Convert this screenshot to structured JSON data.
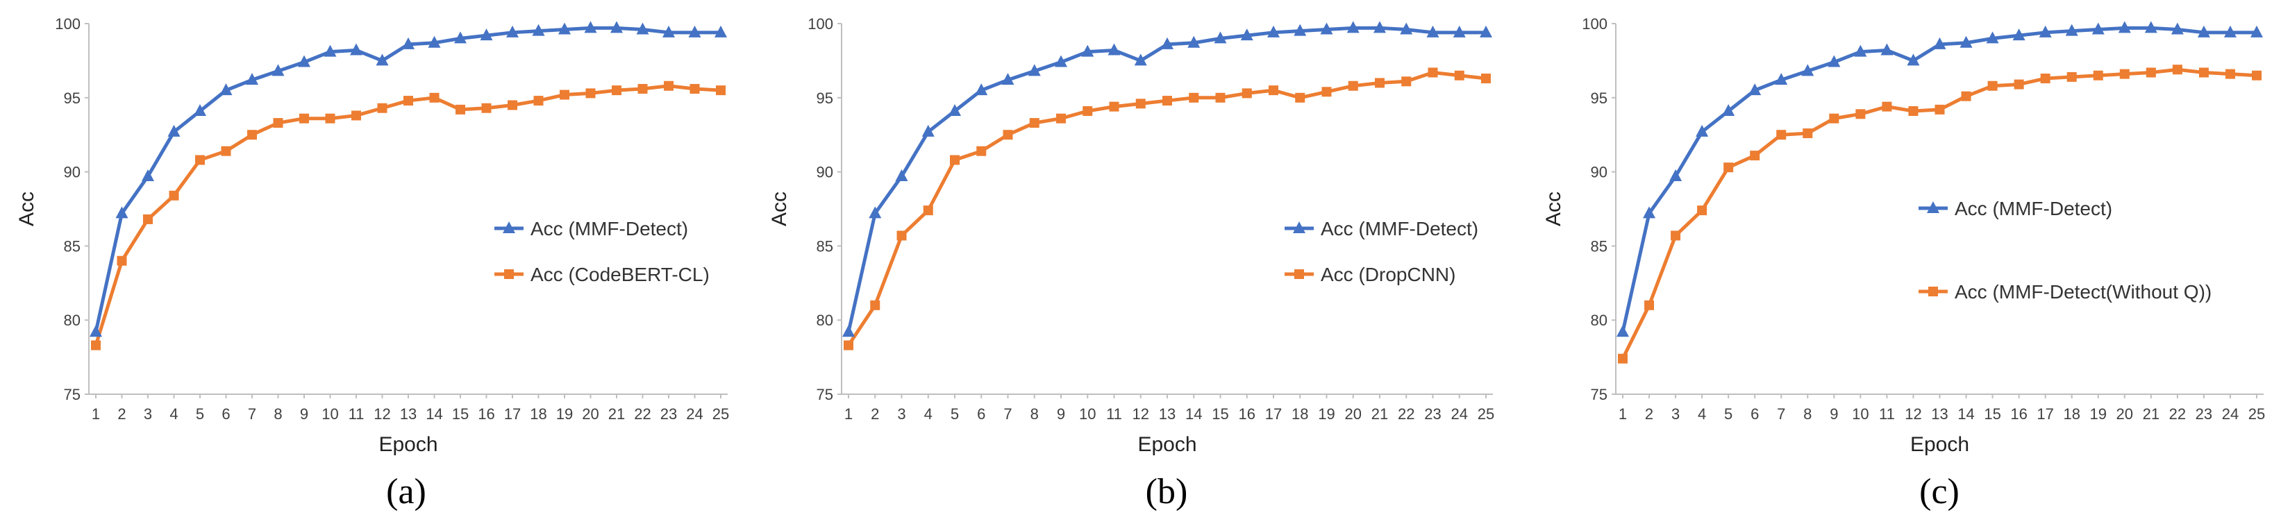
{
  "colors": {
    "mmf": "#4472C4",
    "other": "#ED7D31",
    "axis": "#BFBFBF"
  },
  "chart_data": [
    {
      "type": "line",
      "caption": "(a)",
      "xlabel": "Epoch",
      "ylabel": "Acc",
      "ylim": [
        75,
        100
      ],
      "yticks": [
        "75",
        "80",
        "85",
        "90",
        "95",
        "100"
      ],
      "categories": [
        "1",
        "2",
        "3",
        "4",
        "5",
        "6",
        "7",
        "8",
        "9",
        "10",
        "11",
        "12",
        "13",
        "14",
        "15",
        "16",
        "17",
        "18",
        "19",
        "20",
        "21",
        "22",
        "23",
        "24",
        "25"
      ],
      "legend_position": "center-right",
      "series": [
        {
          "name": "Acc (MMF-Detect)",
          "marker": "triangle",
          "color": "#4472C4",
          "values": [
            79.2,
            87.2,
            89.7,
            92.7,
            94.1,
            95.5,
            96.2,
            96.8,
            97.4,
            98.1,
            98.2,
            97.5,
            98.6,
            98.7,
            99.0,
            99.2,
            99.4,
            99.5,
            99.6,
            99.7,
            99.7,
            99.6,
            99.4,
            99.4,
            99.4
          ]
        },
        {
          "name": "Acc (CodeBERT-CL)",
          "marker": "square",
          "color": "#ED7D31",
          "values": [
            78.3,
            84.0,
            86.8,
            88.4,
            90.8,
            91.4,
            92.5,
            93.3,
            93.6,
            93.6,
            93.8,
            94.3,
            94.8,
            95.0,
            94.2,
            94.3,
            94.5,
            94.8,
            95.2,
            95.3,
            95.5,
            95.6,
            95.8,
            95.6,
            95.5
          ]
        }
      ]
    },
    {
      "type": "line",
      "caption": "(b)",
      "xlabel": "Epoch",
      "ylabel": "Acc",
      "ylim": [
        75,
        100
      ],
      "yticks": [
        "75",
        "80",
        "85",
        "90",
        "95",
        "100"
      ],
      "categories": [
        "1",
        "2",
        "3",
        "4",
        "5",
        "6",
        "7",
        "8",
        "9",
        "10",
        "11",
        "12",
        "13",
        "14",
        "15",
        "16",
        "17",
        "18",
        "19",
        "20",
        "21",
        "22",
        "23",
        "24",
        "25"
      ],
      "legend_position": "center-right",
      "series": [
        {
          "name": "Acc (MMF-Detect)",
          "marker": "triangle",
          "color": "#4472C4",
          "values": [
            79.2,
            87.2,
            89.7,
            92.7,
            94.1,
            95.5,
            96.2,
            96.8,
            97.4,
            98.1,
            98.2,
            97.5,
            98.6,
            98.7,
            99.0,
            99.2,
            99.4,
            99.5,
            99.6,
            99.7,
            99.7,
            99.6,
            99.4,
            99.4,
            99.4
          ]
        },
        {
          "name": "Acc (DropCNN)",
          "marker": "square",
          "color": "#ED7D31",
          "values": [
            78.3,
            81.0,
            85.7,
            87.4,
            90.8,
            91.4,
            92.5,
            93.3,
            93.6,
            94.1,
            94.4,
            94.6,
            94.8,
            95.0,
            95.0,
            95.3,
            95.5,
            95.0,
            95.4,
            95.8,
            96.0,
            96.1,
            96.7,
            96.5,
            96.3
          ]
        }
      ]
    },
    {
      "type": "line",
      "caption": "(c)",
      "xlabel": "Epoch",
      "ylabel": "Acc",
      "ylim": [
        75,
        100
      ],
      "yticks": [
        "75",
        "80",
        "85",
        "90",
        "95",
        "100"
      ],
      "categories": [
        "1",
        "2",
        "3",
        "4",
        "5",
        "6",
        "7",
        "8",
        "9",
        "10",
        "11",
        "12",
        "13",
        "14",
        "15",
        "16",
        "17",
        "18",
        "19",
        "20",
        "21",
        "22",
        "23",
        "24",
        "25"
      ],
      "legend_position": "center-right",
      "series": [
        {
          "name": "Acc (MMF-Detect)",
          "marker": "triangle",
          "color": "#4472C4",
          "values": [
            79.2,
            87.2,
            89.7,
            92.7,
            94.1,
            95.5,
            96.2,
            96.8,
            97.4,
            98.1,
            98.2,
            97.5,
            98.6,
            98.7,
            99.0,
            99.2,
            99.4,
            99.5,
            99.6,
            99.7,
            99.7,
            99.6,
            99.4,
            99.4,
            99.4
          ]
        },
        {
          "name": "Acc (MMF-Detect(Without Q))",
          "marker": "square",
          "color": "#ED7D31",
          "values": [
            77.4,
            81.0,
            85.7,
            87.4,
            90.3,
            91.1,
            92.5,
            92.6,
            93.6,
            93.9,
            94.4,
            94.1,
            94.2,
            95.1,
            95.8,
            95.9,
            96.3,
            96.4,
            96.5,
            96.6,
            96.7,
            96.9,
            96.7,
            96.6,
            96.5
          ]
        }
      ]
    }
  ]
}
